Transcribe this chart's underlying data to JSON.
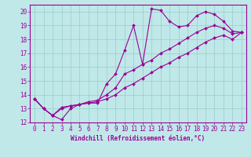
{
  "xlabel": "Windchill (Refroidissement éolien,°C)",
  "xlim": [
    -0.5,
    23.5
  ],
  "ylim": [
    12,
    20.5
  ],
  "xticks": [
    0,
    1,
    2,
    3,
    4,
    5,
    6,
    7,
    8,
    9,
    10,
    11,
    12,
    13,
    14,
    15,
    16,
    17,
    18,
    19,
    20,
    21,
    22,
    23
  ],
  "yticks": [
    12,
    13,
    14,
    15,
    16,
    17,
    18,
    19,
    20
  ],
  "bg_color": "#c0e8e8",
  "line_color": "#990099",
  "grid_color": "#99cccc",
  "line1_x": [
    0,
    1,
    2,
    3,
    4,
    5,
    6,
    7,
    8,
    9,
    10,
    11,
    12,
    13,
    14,
    15,
    16,
    17,
    18,
    19,
    20,
    21,
    22,
    23
  ],
  "line1_y": [
    13.7,
    13.0,
    12.5,
    12.2,
    13.0,
    13.3,
    13.4,
    13.4,
    14.8,
    15.5,
    17.2,
    19.0,
    16.2,
    20.2,
    20.1,
    19.3,
    18.9,
    19.0,
    19.7,
    20.0,
    19.8,
    19.3,
    18.6,
    18.5
  ],
  "line2_x": [
    0,
    1,
    2,
    3,
    4,
    5,
    6,
    7,
    8,
    9,
    10,
    11,
    12,
    13,
    14,
    15,
    16,
    17,
    18,
    19,
    20,
    21,
    22,
    23
  ],
  "line2_y": [
    13.7,
    13.0,
    12.5,
    13.1,
    13.2,
    13.3,
    13.5,
    13.6,
    14.0,
    14.5,
    15.5,
    15.8,
    16.2,
    16.5,
    17.0,
    17.3,
    17.7,
    18.1,
    18.5,
    18.8,
    19.0,
    18.8,
    18.4,
    18.5
  ],
  "line3_x": [
    0,
    1,
    2,
    3,
    4,
    5,
    6,
    7,
    8,
    9,
    10,
    11,
    12,
    13,
    14,
    15,
    16,
    17,
    18,
    19,
    20,
    21,
    22,
    23
  ],
  "line3_y": [
    13.7,
    13.0,
    12.5,
    13.0,
    13.2,
    13.3,
    13.4,
    13.5,
    13.7,
    14.0,
    14.5,
    14.8,
    15.2,
    15.6,
    16.0,
    16.3,
    16.7,
    17.0,
    17.4,
    17.8,
    18.1,
    18.3,
    18.0,
    18.5
  ]
}
